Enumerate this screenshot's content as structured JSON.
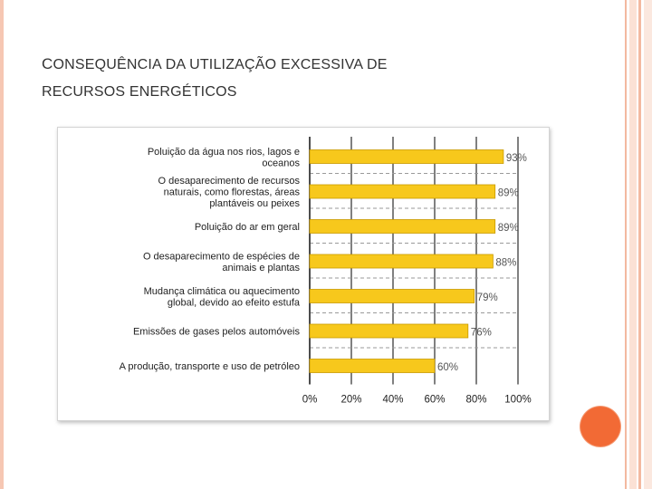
{
  "slide": {
    "title_line1_cap": "C",
    "title_line1_rest": "ONSEQUÊNCIA DA UTILIZAÇÃO EXCESSIVA DE",
    "title_line2": "RECURSOS ENERGÉTICOS",
    "accent_color": "#f26a35"
  },
  "chart_data": {
    "type": "bar",
    "orientation": "horizontal",
    "categories": [
      [
        "Poluição da água nos rios, lagos e",
        "oceanos"
      ],
      [
        "O desaparecimento de recursos",
        "naturais, como florestas, áreas",
        "plantáveis ou peixes"
      ],
      [
        "Poluição do ar em geral"
      ],
      [
        "O desaparecimento de espécies de",
        "animais e plantas"
      ],
      [
        "Mudança climática ou aquecimento",
        "global, devido ao efeito estufa"
      ],
      [
        "Emissões de gases pelos automóveis"
      ],
      [
        "A produção, transporte e uso de petróleo"
      ]
    ],
    "values": [
      93,
      89,
      89,
      88,
      79,
      76,
      60
    ],
    "value_labels": [
      "93%",
      "89%",
      "89%",
      "88%",
      "79%",
      "76%",
      "60%"
    ],
    "x_ticks": [
      "0%",
      "20%",
      "40%",
      "60%",
      "80%",
      "100%"
    ],
    "xlim": [
      0,
      100
    ],
    "grid": true,
    "bar_color": "#f7c81c",
    "bar_edge_color": "#c99a00"
  }
}
